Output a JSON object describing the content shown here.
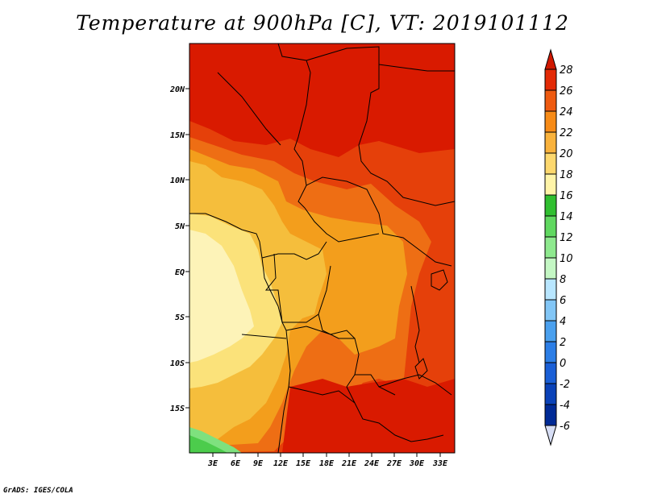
{
  "title": "Temperature at 900hPa [C], VT: 2019101112",
  "credit": "GrADS: IGES/COLA",
  "map": {
    "lat_labels": [
      "20N",
      "15N",
      "10N",
      "5N",
      "EQ",
      "5S",
      "10S",
      "15S"
    ],
    "lon_labels": [
      "3E",
      "6E",
      "9E",
      "12E",
      "15E",
      "18E",
      "21E",
      "24E",
      "27E",
      "30E",
      "33E"
    ],
    "palette": {
      "c28": "#d91a00",
      "c26": "#e5400a",
      "c24": "#ee6e14",
      "c22": "#f39e1c",
      "c20": "#f5be3c",
      "c18": "#fbe27a",
      "c16": "#fdf3b8",
      "c14": "#4ccc4c",
      "c12": "#7ee17e",
      "c10": "#b4f0b4"
    }
  },
  "colorbar": {
    "levels": [
      "28",
      "26",
      "24",
      "22",
      "20",
      "18",
      "16",
      "14",
      "12",
      "10",
      "8",
      "6",
      "4",
      "2",
      "0",
      "-2",
      "-4",
      "-6"
    ],
    "colors": [
      "#e32a06",
      "#ee5a10",
      "#f78b17",
      "#f9b23c",
      "#fdd86e",
      "#fff4a8",
      "#30bf30",
      "#60d860",
      "#8ee98e",
      "#c4f7c4",
      "#b8e6ff",
      "#82c6f6",
      "#4aa0ee",
      "#2c7ee6",
      "#1a5fd6",
      "#0a42b8",
      "#002a96",
      "#000e5c"
    ],
    "top_arrow_color": "#d01800",
    "bottom_arrow_color": "#d7def5"
  }
}
